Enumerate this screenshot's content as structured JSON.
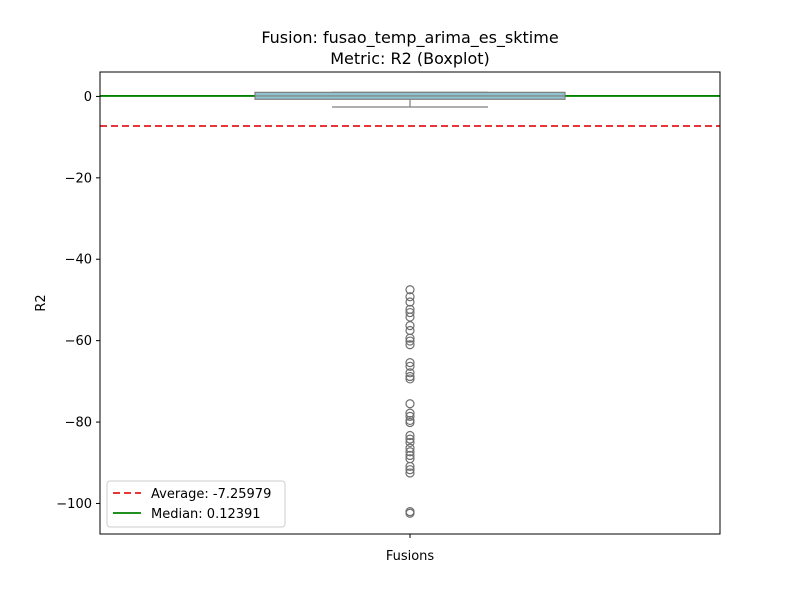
{
  "chart_data": {
    "type": "box",
    "title": "Fusion: fusao_temp_arima_es_sktime",
    "subtitle": "Metric: R2 (Boxplot)",
    "xlabel": "Fusions",
    "ylabel": "R2",
    "ylim": [
      -107.5,
      6.0
    ],
    "yticks": [
      0,
      -20,
      -40,
      -60,
      -80,
      -100
    ],
    "grid": false,
    "legend_position": "lower-left",
    "box": {
      "q1": -0.7,
      "median": 0.12391,
      "q3": 1.0,
      "whisker_low": -2.6,
      "whisker_high": 1.0,
      "fill": "#8fc3cf",
      "edge": "#7f7f7f"
    },
    "outliers": [
      -47.5,
      -49.2,
      -50.5,
      -52.3,
      -53.1,
      -54.2,
      -56.3,
      -57.5,
      -59.4,
      -60.1,
      -61.0,
      -65.4,
      -66.3,
      -67.9,
      -68.8,
      -69.4,
      -75.5,
      -77.8,
      -78.6,
      -79.6,
      -80.1,
      -83.3,
      -84.2,
      -85.0,
      -86.4,
      -87.3,
      -88.2,
      -89.0,
      -90.9,
      -91.7,
      -92.5,
      -102.0,
      -102.4
    ],
    "reference_lines": [
      {
        "label": "Average: -7.25979",
        "value": -7.25979,
        "color": "#e41a1c",
        "style": "dashed"
      },
      {
        "label": "Median: 0.12391",
        "value": 0.12391,
        "color": "#008000",
        "style": "solid"
      }
    ]
  }
}
